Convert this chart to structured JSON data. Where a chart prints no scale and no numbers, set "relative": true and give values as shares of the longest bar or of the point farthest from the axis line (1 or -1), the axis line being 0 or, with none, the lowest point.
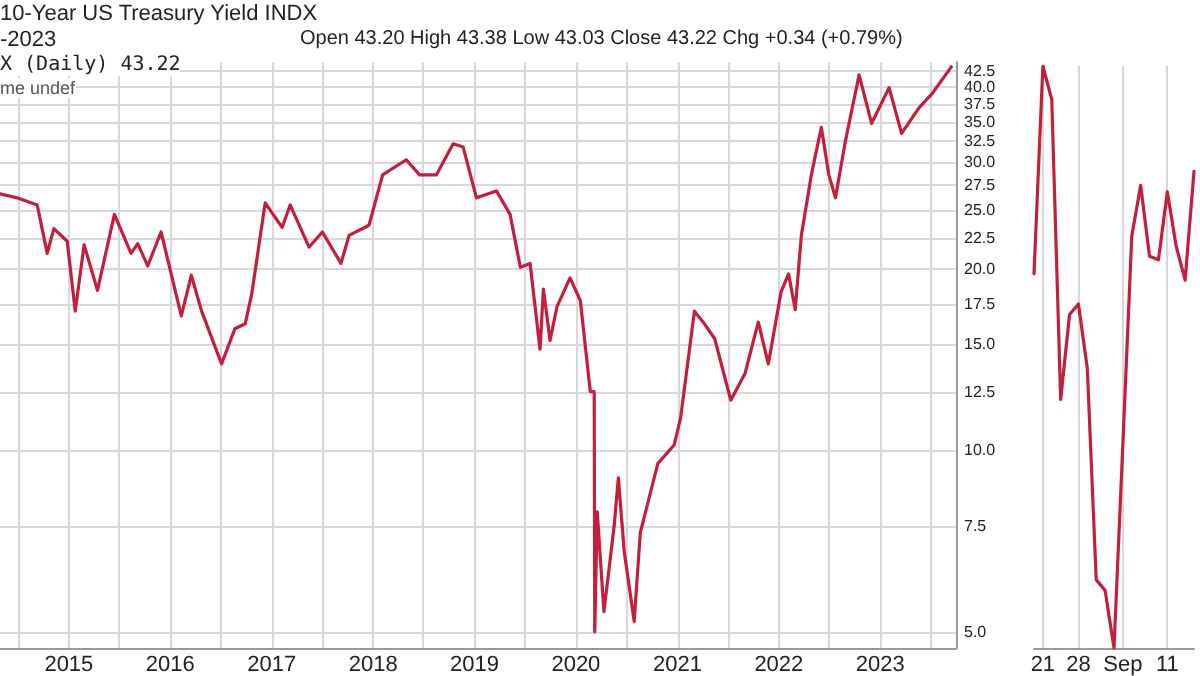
{
  "chart_data": [
    {
      "type": "line",
      "title": "10-Year US Treasury Yield INDX",
      "annotations": [
        "-2023",
        "Open 43.20 High 43.38 Low 43.03 Close 43.22 Chg +0.34 (+0.79%)",
        "X (Daily) 43.22",
        "me undef"
      ],
      "x": [
        "2014-04-28",
        "2014-06-28",
        "2014-09-09",
        "2014-10-15",
        "2014-11-08",
        "2014-12-26",
        "2015-01-24",
        "2015-02-25",
        "2015-04-14",
        "2015-06-14",
        "2015-08-13",
        "2015-09-06",
        "2015-10-12",
        "2015-11-29",
        "2016-02-10",
        "2016-03-17",
        "2016-04-23",
        "2016-07-04",
        "2016-08-21",
        "2016-09-27",
        "2016-10-21",
        "2016-12-08",
        "2017-02-07",
        "2017-03-08",
        "2017-05-15",
        "2017-07-02",
        "2017-09-07",
        "2017-10-06",
        "2017-12-17",
        "2018-02-04",
        "2018-04-30",
        "2018-06-17",
        "2018-08-17",
        "2018-10-16",
        "2018-11-21",
        "2019-01-08",
        "2019-03-21",
        "2019-05-09",
        "2019-06-15",
        "2019-07-20",
        "2019-08-25",
        "2019-09-06",
        "2019-09-30",
        "2019-10-25",
        "2019-12-11",
        "2020-01-17",
        "2020-01-30",
        "2020-02-22",
        "2020-03-07",
        "2020-03-09",
        "2020-03-18",
        "2020-04-11",
        "2020-05-18",
        "2020-06-02",
        "2020-06-23",
        "2020-07-29",
        "2020-08-20",
        "2020-10-22",
        "2020-12-20",
        "2021-01-12",
        "2021-03-03",
        "2021-04-08",
        "2021-05-15",
        "2021-07-12",
        "2021-09-01",
        "2021-10-19",
        "2021-11-24",
        "2022-01-09",
        "2022-02-05",
        "2022-03-01",
        "2022-03-23",
        "2022-04-28",
        "2022-06-03",
        "2022-06-30",
        "2022-07-24",
        "2022-08-29",
        "2022-10-17",
        "2022-12-01",
        "2023-02-02",
        "2023-03-19",
        "2023-05-22",
        "2023-07-07",
        "2023-09-14"
      ],
      "series": [
        {
          "color": "#c41e3a",
          "values": [
            26.6,
            26.2,
            25.5,
            21.2,
            23.3,
            22.2,
            17,
            21.9,
            18.4,
            24.6,
            21.2,
            22,
            20.2,
            23,
            16.7,
            19.5,
            17,
            13.9,
            15.9,
            16.2,
            18.2,
            25.7,
            23.4,
            25.5,
            21.7,
            23,
            20.4,
            22.7,
            23.6,
            28.6,
            30.3,
            28.6,
            28.6,
            32.2,
            31.8,
            26.2,
            26.9,
            24.6,
            20.1,
            20.4,
            14.7,
            18.5,
            15.2,
            17.3,
            19.3,
            17.7,
            15.6,
            12.5,
            12.5,
            5.0,
            7.9,
            5.4,
            7.5,
            9.0,
            6.8,
            5.2,
            7.3,
            9.5,
            10.2,
            11.3,
            17.0,
            16.2,
            15.3,
            12.1,
            13.4,
            16.3,
            13.9,
            18.3,
            19.6,
            17.1,
            22.7,
            28.6,
            34.3,
            28.6,
            26.2,
            32.6,
            41.9,
            34.8,
            39.9,
            33.5,
            37,
            39,
            43.2
          ]
        }
      ],
      "log": "y",
      "ylim": [
        4.7,
        44
      ],
      "yticks": [
        {
          "value": 5,
          "label": "5.0"
        },
        {
          "value": 7.5,
          "label": "7.5"
        },
        {
          "value": 10,
          "label": "10.0"
        },
        {
          "value": 12.5,
          "label": "12.5"
        },
        {
          "value": 15,
          "label": "15.0"
        },
        {
          "value": 17.5,
          "label": "17.5"
        },
        {
          "value": 20,
          "label": "20.0"
        },
        {
          "value": 22.5,
          "label": "22.5"
        },
        {
          "value": 25,
          "label": "25.0"
        },
        {
          "value": 27.5,
          "label": "27.5"
        },
        {
          "value": 30,
          "label": "30.0"
        },
        {
          "value": 32.5,
          "label": "32.5"
        },
        {
          "value": 35,
          "label": "35.0"
        },
        {
          "value": 37.5,
          "label": "37.5"
        },
        {
          "value": 40,
          "label": "40.0"
        },
        {
          "value": 42.5,
          "label": "42.5"
        }
      ],
      "xlim": [
        "2014-04-28",
        "2023-10-01"
      ],
      "xticks": [
        {
          "value": "2014-07-01",
          "label": null
        },
        {
          "value": "2015-01-01",
          "label": "2015"
        },
        {
          "value": "2015-07-01",
          "label": null
        },
        {
          "value": "2016-01-01",
          "label": "2016"
        },
        {
          "value": "2016-07-01",
          "label": null
        },
        {
          "value": "2017-01-01",
          "label": "2017"
        },
        {
          "value": "2017-07-01",
          "label": null
        },
        {
          "value": "2018-01-01",
          "label": "2018"
        },
        {
          "value": "2018-07-01",
          "label": null
        },
        {
          "value": "2019-01-01",
          "label": "2019"
        },
        {
          "value": "2019-07-01",
          "label": null
        },
        {
          "value": "2020-01-01",
          "label": "2020"
        },
        {
          "value": "2020-07-01",
          "label": null
        },
        {
          "value": "2021-01-01",
          "label": "2021"
        },
        {
          "value": "2021-07-01",
          "label": null
        },
        {
          "value": "2022-01-01",
          "label": "2022"
        },
        {
          "value": "2022-07-01",
          "label": null
        },
        {
          "value": "2023-01-01",
          "label": "2023"
        },
        {
          "value": "2023-07-01",
          "label": null
        }
      ],
      "grid": true,
      "marker": "none",
      "line_style": "solid"
    },
    {
      "type": "line",
      "relative": true,
      "categories": [
        null,
        "21",
        null,
        null,
        null,
        "28",
        null,
        null,
        null,
        null,
        "Sep",
        null,
        null,
        null,
        null,
        "11",
        null,
        null,
        null
      ],
      "series": [
        {
          "color": "#c41e3a",
          "values": [
            0.643,
            1.0,
            0.942,
            0.427,
            0.573,
            0.591,
            0.48,
            0.117,
            0.099,
            0.0,
            0.351,
            0.708,
            0.795,
            0.673,
            0.667,
            0.784,
            0.69,
            0.632,
            0.819
          ]
        }
      ],
      "grid": "x",
      "marker": "none",
      "line_style": "solid"
    }
  ]
}
